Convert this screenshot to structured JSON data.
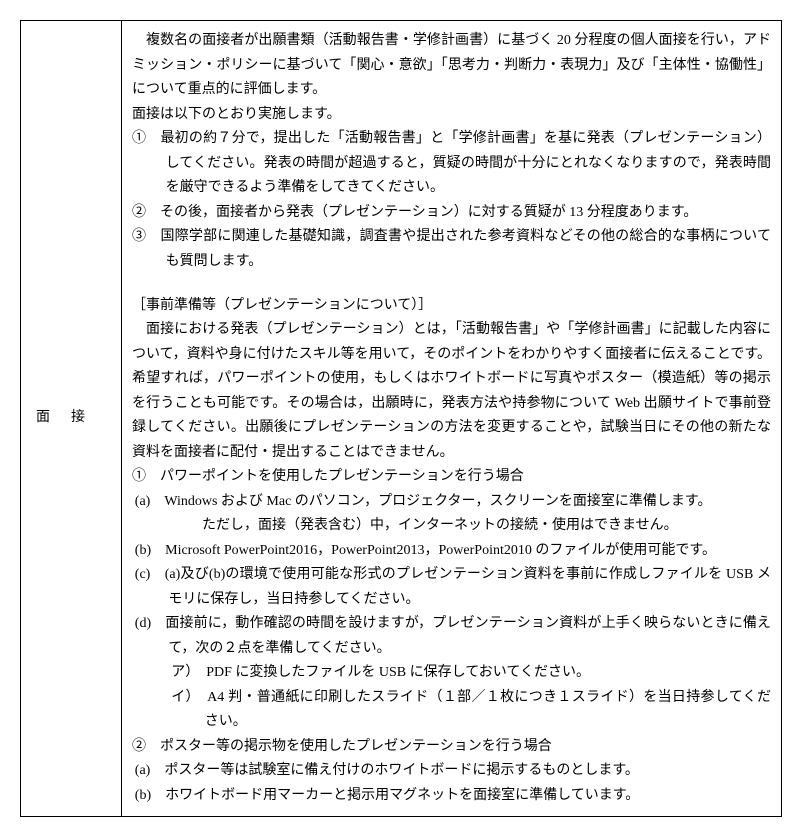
{
  "label": "面接",
  "p1": "　複数名の面接者が出願書類（活動報告書・学修計画書）に基づく 20 分程度の個人面接を行い，アドミッション・ポリシーに基づいて「関心・意欲」「思考力・判断力・表現力」及び「主体性・協働性」について重点的に評価します。",
  "p2": "面接は以下のとおり実施します。",
  "n1": "①　最初の約７分で，提出した「活動報告書」と「学修計画書」を基に発表（プレゼンテーション）してください。発表の時間が超過すると，質疑の時間が十分にとれなくなりますので，発表時間を厳守できるよう準備をしてきてください。",
  "n2": "②　その後，面接者から発表（プレゼンテーション）に対する質疑が 13 分程度あります。",
  "n3": "③　国際学部に関連した基礎知識，調査書や提出された参考資料などその他の総合的な事柄についても質問します。",
  "h1": "［事前準備等（プレゼンテーションについて）］",
  "p3": "　面接における発表（プレゼンテーション）とは，「活動報告書」や「学修計画書」に記載した内容について，資料や身に付けたスキル等を用いて，そのポイントをわかりやすく面接者に伝えることです。希望すれば，パワーポイントの使用，もしくはホワイトボードに写真やポスター（模造紙）等の掲示を行うことも可能です。その場合は，出願時に，発表方法や持参物について Web 出願サイトで事前登録してください。出願後にプレゼンテーションの方法を変更することや，試験当日にその他の新たな資料を面接者に配付・提出することはできません。",
  "s1": "①　パワーポイントを使用したプレゼンテーションを行う場合",
  "s1a": "(a)　Windows および Mac のパソコン，プロジェクター，スクリーンを面接室に準備します。",
  "s1a_note": "　ただし，面接（発表含む）中，インターネットの接続・使用はできません。",
  "s1b": "(b)　Microsoft PowerPoint2016，PowerPoint2013，PowerPoint2010 のファイルが使用可能です。",
  "s1c": "(c)　(a)及び(b)の環境で使用可能な形式のプレゼンテーション資料を事前に作成しファイルを USB メモリに保存し，当日持参してください。",
  "s1d": "(d)　面接前に，動作確認の時間を設けますが，プレゼンテーション資料が上手く映らないときに備えて，次の２点を準備してください。",
  "s1d_a": "ア）　PDF に変換したファイルを USB に保存しておいてください。",
  "s1d_b": "イ）　A4 判・普通紙に印刷したスライド（１部／１枚につき１スライド）を当日持参してください。",
  "s2": "②　ポスター等の掲示物を使用したプレゼンテーションを行う場合",
  "s2a": "(a)　ポスター等は試験室に備え付けのホワイトボードに掲示するものとします。",
  "s2b": "(b)　ホワイトボード用マーカーと掲示用マグネットを面接室に準備しています。"
}
